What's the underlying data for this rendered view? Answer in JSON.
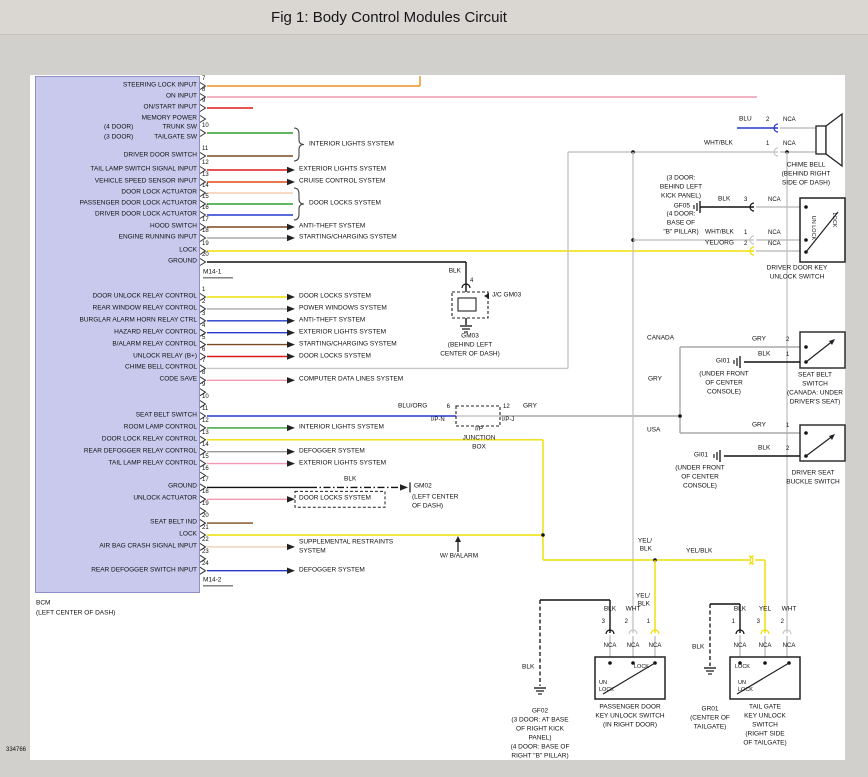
{
  "title": "Fig 1: Body Control Modules Circuit",
  "doc_number": "334766",
  "module": {
    "name": "BCM",
    "location": "(LEFT CENTER OF DASH)",
    "connectors": [
      "M14-1",
      "M14-2"
    ]
  },
  "wire_colors": {
    "ORG": "#e8921e",
    "PNK": "#f09ab2",
    "RED": "#e01818",
    "RED/ORG": "#e04a14",
    "GRN/ORG": "#2f9e2f",
    "BRN": "#7a4a21",
    "WHT/ORG": "#f0cdb0",
    "GRN/BLK": "#2f9e2f",
    "BLU/BLK": "#2438cc",
    "GRY/ORG": "#a8a8a8",
    "YEL/ORG": "#eedd00",
    "BLK": "#1a1a1a",
    "YEL/BLK": "#eedd00",
    "GRY": "#a8a8a8",
    "BLU": "#2438cc",
    "BRN/BLK": "#7a4a21",
    "WHT/BLK": "#c6c6c6",
    "GRN": "#2f9e2f",
    "YEL": "#eedd00",
    "GRY/BLK": "#9a9a9a",
    "PNK/BLK": "#f09ab2",
    "BLU/ORG": "#2438cc",
    "NCA": "#c0c0c0"
  },
  "braces": [
    "INTERIOR LIGHTS SYSTEM",
    "DOOR LOCKS SYSTEM"
  ],
  "connector_m14_1": {
    "pins": [
      {
        "pin": "7",
        "label": "STEERING LOCK INPUT",
        "wire": "ORG"
      },
      {
        "pin": "8",
        "label": "ON INPUT",
        "wire": "PNK"
      },
      {
        "pin": "9",
        "label": "ON/START INPUT",
        "wire": "RED"
      },
      {
        "pin": "",
        "label": "MEMORY POWER",
        "wire": ""
      },
      {
        "pin": "10",
        "label": "TRUNK SW",
        "pre": "(4 DOOR)",
        "label2": "TAILGATE SW",
        "pre2": "(3 DOOR)",
        "wire": "GRN/ORG"
      },
      {
        "pin": "11",
        "label": "DRIVER DOOR SWITCH",
        "wire": "BRN"
      },
      {
        "pin": "12",
        "label": "TAIL LAMP SWITCH SIGNAL INPUT",
        "wire": "RED",
        "dest": "EXTERIOR LIGHTS SYSTEM"
      },
      {
        "pin": "13",
        "label": "VEHICLE SPEED SENSOR INPUT",
        "wire": "RED/ORG",
        "dest": "CRUISE CONTROL SYSTEM"
      },
      {
        "pin": "14",
        "label": "DOOR LOCK ACTUATOR",
        "wire": "WHT/ORG"
      },
      {
        "pin": "15",
        "label": "PASSENGER DOOR LOCK ACTUATOR",
        "wire": "GRN/BLK"
      },
      {
        "pin": "16",
        "label": "DRIVER DOOR LOCK ACTUATOR",
        "wire": "BLU/BLK"
      },
      {
        "pin": "17",
        "label": "HOOD SWITCH",
        "wire": "BRN",
        "dest": "ANTI-THEFT SYSTEM"
      },
      {
        "pin": "18",
        "label": "ENGINE RUNNING INPUT",
        "wire": "GRY/ORG",
        "dest": "STARTING/CHARGING SYSTEM"
      },
      {
        "pin": "19",
        "label": "LOCK",
        "wire": "YEL/ORG"
      },
      {
        "pin": "20",
        "label": "GROUND",
        "wire": "BLK"
      }
    ]
  },
  "connector_m14_2": {
    "pins": [
      {
        "pin": "1",
        "label": "DOOR UNLOCK RELAY CONTROL",
        "wire": "YEL/BLK",
        "dest": "DOOR LOCKS SYSTEM"
      },
      {
        "pin": "2",
        "label": "REAR WINDOW RELAY CONTROL",
        "wire": "GRY",
        "dest": "POWER WINDOWS SYSTEM"
      },
      {
        "pin": "3",
        "label": "BURGLAR ALARM HORN RELAY CTRL",
        "wire": "BLU",
        "dest": "ANTI-THEFT SYSTEM"
      },
      {
        "pin": "4",
        "label": "HAZARD RELAY CONTROL",
        "wire": "BLU/BLK",
        "dest": "EXTERIOR LIGHTS SYSTEM"
      },
      {
        "pin": "5",
        "label": "B/ALARM RELAY CONTROL",
        "wire": "BRN/BLK",
        "dest": "STARTING/CHARGING SYSTEM"
      },
      {
        "pin": "6",
        "label": "UNLOCK RELAY (B+)",
        "wire": "RED",
        "dest": "DOOR LOCKS SYSTEM"
      },
      {
        "pin": "7",
        "label": "CHIME BELL CONTROL",
        "wire": "WHT/BLK"
      },
      {
        "pin": "8",
        "label": "CODE SAVE",
        "wire": "PNK",
        "dest": "COMPUTER DATA LINES SYSTEM"
      },
      {
        "pin": "9",
        "label": "",
        "wire": ""
      },
      {
        "pin": "10",
        "label": "",
        "wire": ""
      },
      {
        "pin": "11",
        "label": "SEAT BELT SWITCH",
        "wire": "BLU/ORG"
      },
      {
        "pin": "12",
        "label": "ROOM LAMP CONTROL",
        "wire": "GRN",
        "dest": "INTERIOR LIGHTS SYSTEM"
      },
      {
        "pin": "13",
        "label": "DOOR LOCK RELAY CONTROL",
        "wire": "YEL"
      },
      {
        "pin": "14",
        "label": "REAR DEFOGGER RELAY CONTROL",
        "wire": "GRY/BLK",
        "dest": "DEFOGGER SYSTEM"
      },
      {
        "pin": "15",
        "label": "TAIL LAMP RELAY CONTROL",
        "wire": "PNK/BLK",
        "dest": "EXTERIOR LIGHTS SYSTEM"
      },
      {
        "pin": "16",
        "label": "",
        "wire": ""
      },
      {
        "pin": "17",
        "label": "GROUND",
        "wire": "BLK"
      },
      {
        "pin": "18",
        "label": "UNLOCK ACTUATOR",
        "wire": "PNK",
        "dest": "DOOR LOCKS SYSTEM"
      },
      {
        "pin": "19",
        "label": "",
        "wire": ""
      },
      {
        "pin": "20",
        "label": "SEAT BELT IND",
        "wire": "BRN"
      },
      {
        "pin": "21",
        "label": "LOCK",
        "wire": "YEL/BLK"
      },
      {
        "pin": "22",
        "label": "AIR BAG CRASH SIGNAL INPUT",
        "wire": "WHT/ORG",
        "dest": [
          "SUPPLEMENTAL RESTRAINTS",
          "SYSTEM"
        ]
      },
      {
        "pin": "23",
        "label": "",
        "wire": ""
      },
      {
        "pin": "24",
        "label": "REAR DEFOGGER SWITCH INPUT",
        "wire": "BLU/ORG",
        "dest": "DEFOGGER SYSTEM"
      }
    ]
  },
  "notes": {
    "blu": "BLU",
    "whtblk": "WHT/BLK",
    "yelorg": "YEL/ORG",
    "bluorg": "BLU/ORG",
    "gry": "GRY",
    "blk": "BLK",
    "yel": "YEL",
    "wht": "WHT",
    "yelblk": "YEL/BLK",
    "nca": "NCA",
    "n1": "1",
    "n2": "2",
    "n3": "3",
    "n4": "4",
    "n6": "6",
    "n12": "12",
    "canada": "CANADA",
    "usa": "USA",
    "gf05": "GF05",
    "gi01": "GI01",
    "gm02": "GM02",
    "gf02": "GF02",
    "gr01": "GR01",
    "jc_gm03": "J/C GM03",
    "wb": "W/ B/ALARM",
    "ipn": "I/P-N",
    "ipj": "I/P-J",
    "un": "UN",
    "lock": "LOCK",
    "unlock": "UN LOCK"
  },
  "captions": {
    "chime": [
      "CHIME BELL",
      "(BEHIND RIGHT",
      "SIDE OF DASH)"
    ],
    "gf05_3": [
      "(3 DOOR:",
      "BEHIND LEFT",
      "KICK PANEL)"
    ],
    "gf05_4": [
      "(4 DOOR:",
      "BASE OF",
      "\"B\" PILLAR)"
    ],
    "dks": [
      "DRIVER DOOR KEY",
      "UNLOCK SWITCH"
    ],
    "sbs": [
      "SEAT BELT",
      "SWITCH",
      "(CANADA: UNDER",
      "DRIVER'S SEAT)"
    ],
    "console": [
      "(UNDER FRONT",
      "OF CENTER",
      "CONSOLE)"
    ],
    "dsb": [
      "DRIVER SEAT",
      "BUCKLE SWITCH"
    ],
    "gm03": [
      "GM03",
      "(BEHIND LEFT",
      "CENTER OF DASH)"
    ],
    "gm02loc": [
      "(LEFT CENTER",
      "OF DASH)"
    ],
    "ip": [
      "I/P",
      "JUNCTION",
      "BOX"
    ],
    "pks": [
      "PASSENGER DOOR",
      "KEY UNLOCK SWITCH",
      "(IN RIGHT DOOR)"
    ],
    "tks": [
      "TAIL GATE",
      "KEY UNLOCK",
      "SWITCH",
      "(RIGHT SIDE",
      "OF TAILGATE)"
    ],
    "gf02loc": [
      "(3 DOOR: AT BASE",
      "OF RIGHT KICK",
      "PANEL)",
      "(4 DOOR: BASE OF",
      "RIGHT \"B\" PILLAR)"
    ],
    "gr01loc": [
      "(CENTER OF",
      "TAILGATE)"
    ],
    "yelblk2": [
      "YEL/",
      "BLK"
    ]
  }
}
